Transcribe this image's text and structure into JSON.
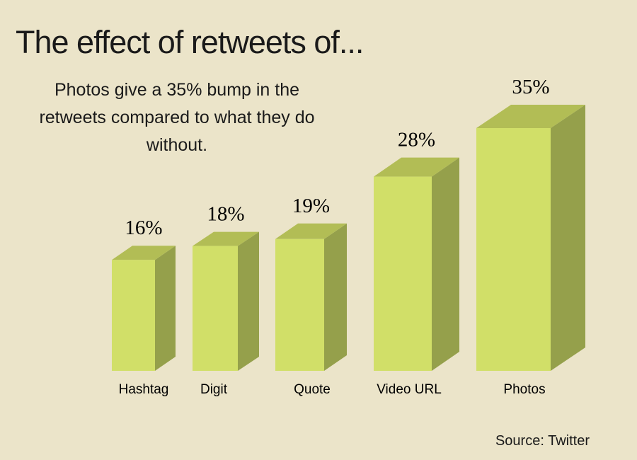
{
  "chart_data": {
    "type": "bar3d",
    "title": "The effect of retweets of...",
    "subtitle": "Photos give a 35% bump in the retweets compared to what they do without.",
    "source": "Source: Twitter",
    "categories": [
      "Hashtag",
      "Digit",
      "Quote",
      "Video URL",
      "Photos"
    ],
    "values": [
      16,
      18,
      19,
      28,
      35
    ],
    "value_labels": [
      "16%",
      "18%",
      "19%",
      "28%",
      "35%"
    ],
    "colors": {
      "front": "#d1df68",
      "top": "#b2bd55",
      "side": "#95a04b"
    }
  }
}
